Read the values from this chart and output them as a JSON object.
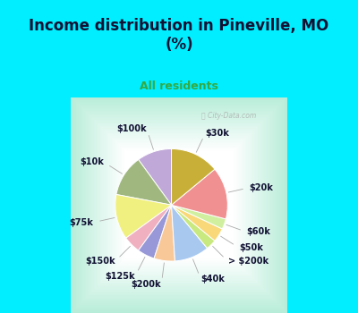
{
  "title": "Income distribution in Pineville, MO\n(%)",
  "subtitle": "All residents",
  "title_color": "#111133",
  "subtitle_color": "#33aa44",
  "bg_color": "#00eeff",
  "watermark": "City-Data.com",
  "slices": [
    {
      "label": "$100k",
      "value": 10,
      "color": "#c0a8d8"
    },
    {
      "label": "$10k",
      "value": 12,
      "color": "#a0b880"
    },
    {
      "label": "$75k",
      "value": 13,
      "color": "#f0f080"
    },
    {
      "label": "$150k",
      "value": 5,
      "color": "#f0b0c0"
    },
    {
      "label": "$125k",
      "value": 5,
      "color": "#9898d8"
    },
    {
      "label": "$200k",
      "value": 6,
      "color": "#f8c898"
    },
    {
      "label": "$40k",
      "value": 10,
      "color": "#a8c8f0"
    },
    {
      "label": "> $200k",
      "value": 3,
      "color": "#c8e880"
    },
    {
      "label": "$50k",
      "value": 4,
      "color": "#f8d878"
    },
    {
      "label": "$60k",
      "value": 3,
      "color": "#d0f0a0"
    },
    {
      "label": "$20k",
      "value": 15,
      "color": "#f09090"
    },
    {
      "label": "$30k",
      "value": 14,
      "color": "#c8b038"
    }
  ],
  "title_fontsize": 12,
  "subtitle_fontsize": 9,
  "label_fontsize": 7,
  "figsize": [
    4.0,
    3.5
  ],
  "dpi": 100
}
